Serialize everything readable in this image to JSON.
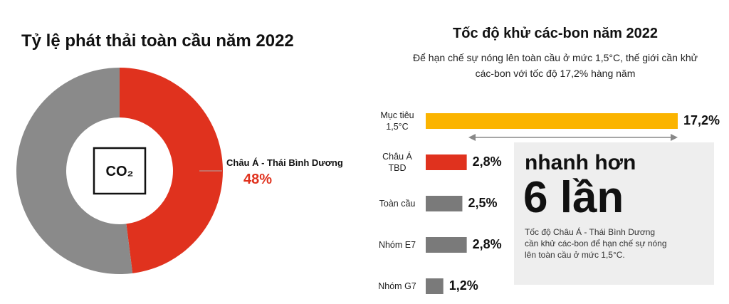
{
  "chart_data": [
    {
      "type": "pie",
      "title": "Tỷ lệ phát thải toàn cầu năm 2022",
      "icon_label": "CO₂",
      "categories": [
        "Châu Á - Thái Bình Dương",
        null
      ],
      "values": [
        48,
        52
      ],
      "value_labels": [
        "48%",
        null
      ],
      "colors": [
        "#e0321e",
        "#8a8a8a"
      ]
    },
    {
      "type": "hbar",
      "title": "Tốc độ khử các-bon năm 2022",
      "subtitle": "Để hạn chế sự nóng lên toàn cầu ở mức 1,5°C, thế giới cần khử các-bon với tốc độ 17,2% hàng năm",
      "categories": [
        "Mục tiêu 1,5°C",
        "Châu Á TBD",
        "Toàn cầu",
        "Nhóm E7",
        "Nhóm G7"
      ],
      "values": [
        17.2,
        2.8,
        2.5,
        2.8,
        1.2
      ],
      "value_labels": [
        "17,2%",
        "2,8%",
        "2,5%",
        "2,8%",
        "1,2%"
      ],
      "colors": [
        "#fbb400",
        "#e0321e",
        "#7a7a7a",
        "#7a7a7a",
        "#7a7a7a"
      ],
      "annotation": {
        "line1": "nhanh hơn",
        "line2": "6 lần",
        "note": "Tốc độ Châu Á - Thái Bình Dương cần khử các-bon để hạn chế sự nóng lên toàn cầu ở mức 1,5°C."
      }
    }
  ]
}
